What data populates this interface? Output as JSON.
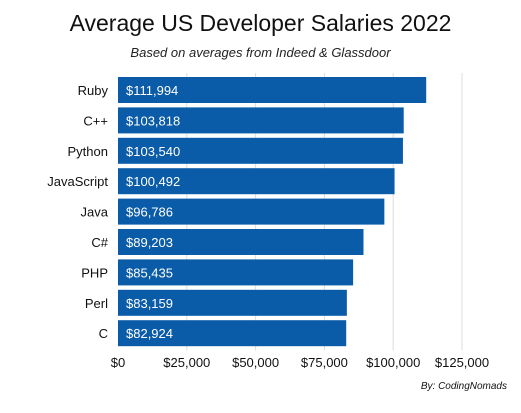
{
  "chart_data": {
    "type": "bar",
    "orientation": "horizontal",
    "title": "Average US Developer Salaries 2022",
    "subtitle": "Based on averages from Indeed & Glassdoor",
    "categories": [
      "Ruby",
      "C++",
      "Python",
      "JavaScript",
      "Java",
      "C#",
      "PHP",
      "Perl",
      "C"
    ],
    "values": [
      111994,
      103818,
      103540,
      100492,
      96786,
      89203,
      85435,
      83159,
      82924
    ],
    "value_labels": [
      "$111,994",
      "$103,818",
      "$103,540",
      "$100,492",
      "$96,786",
      "$89,203",
      "$85,435",
      "$83,159",
      "$82,924"
    ],
    "xlim": [
      0,
      125000
    ],
    "x_ticks": [
      0,
      25000,
      50000,
      75000,
      100000,
      125000
    ],
    "x_tick_labels": [
      "$0",
      "$25,000",
      "$50,000",
      "$75,000",
      "$100,000",
      "$125,000"
    ],
    "grid": "vertical",
    "bar_color": "#0a5ba8",
    "credit": "By: CodingNomads"
  }
}
